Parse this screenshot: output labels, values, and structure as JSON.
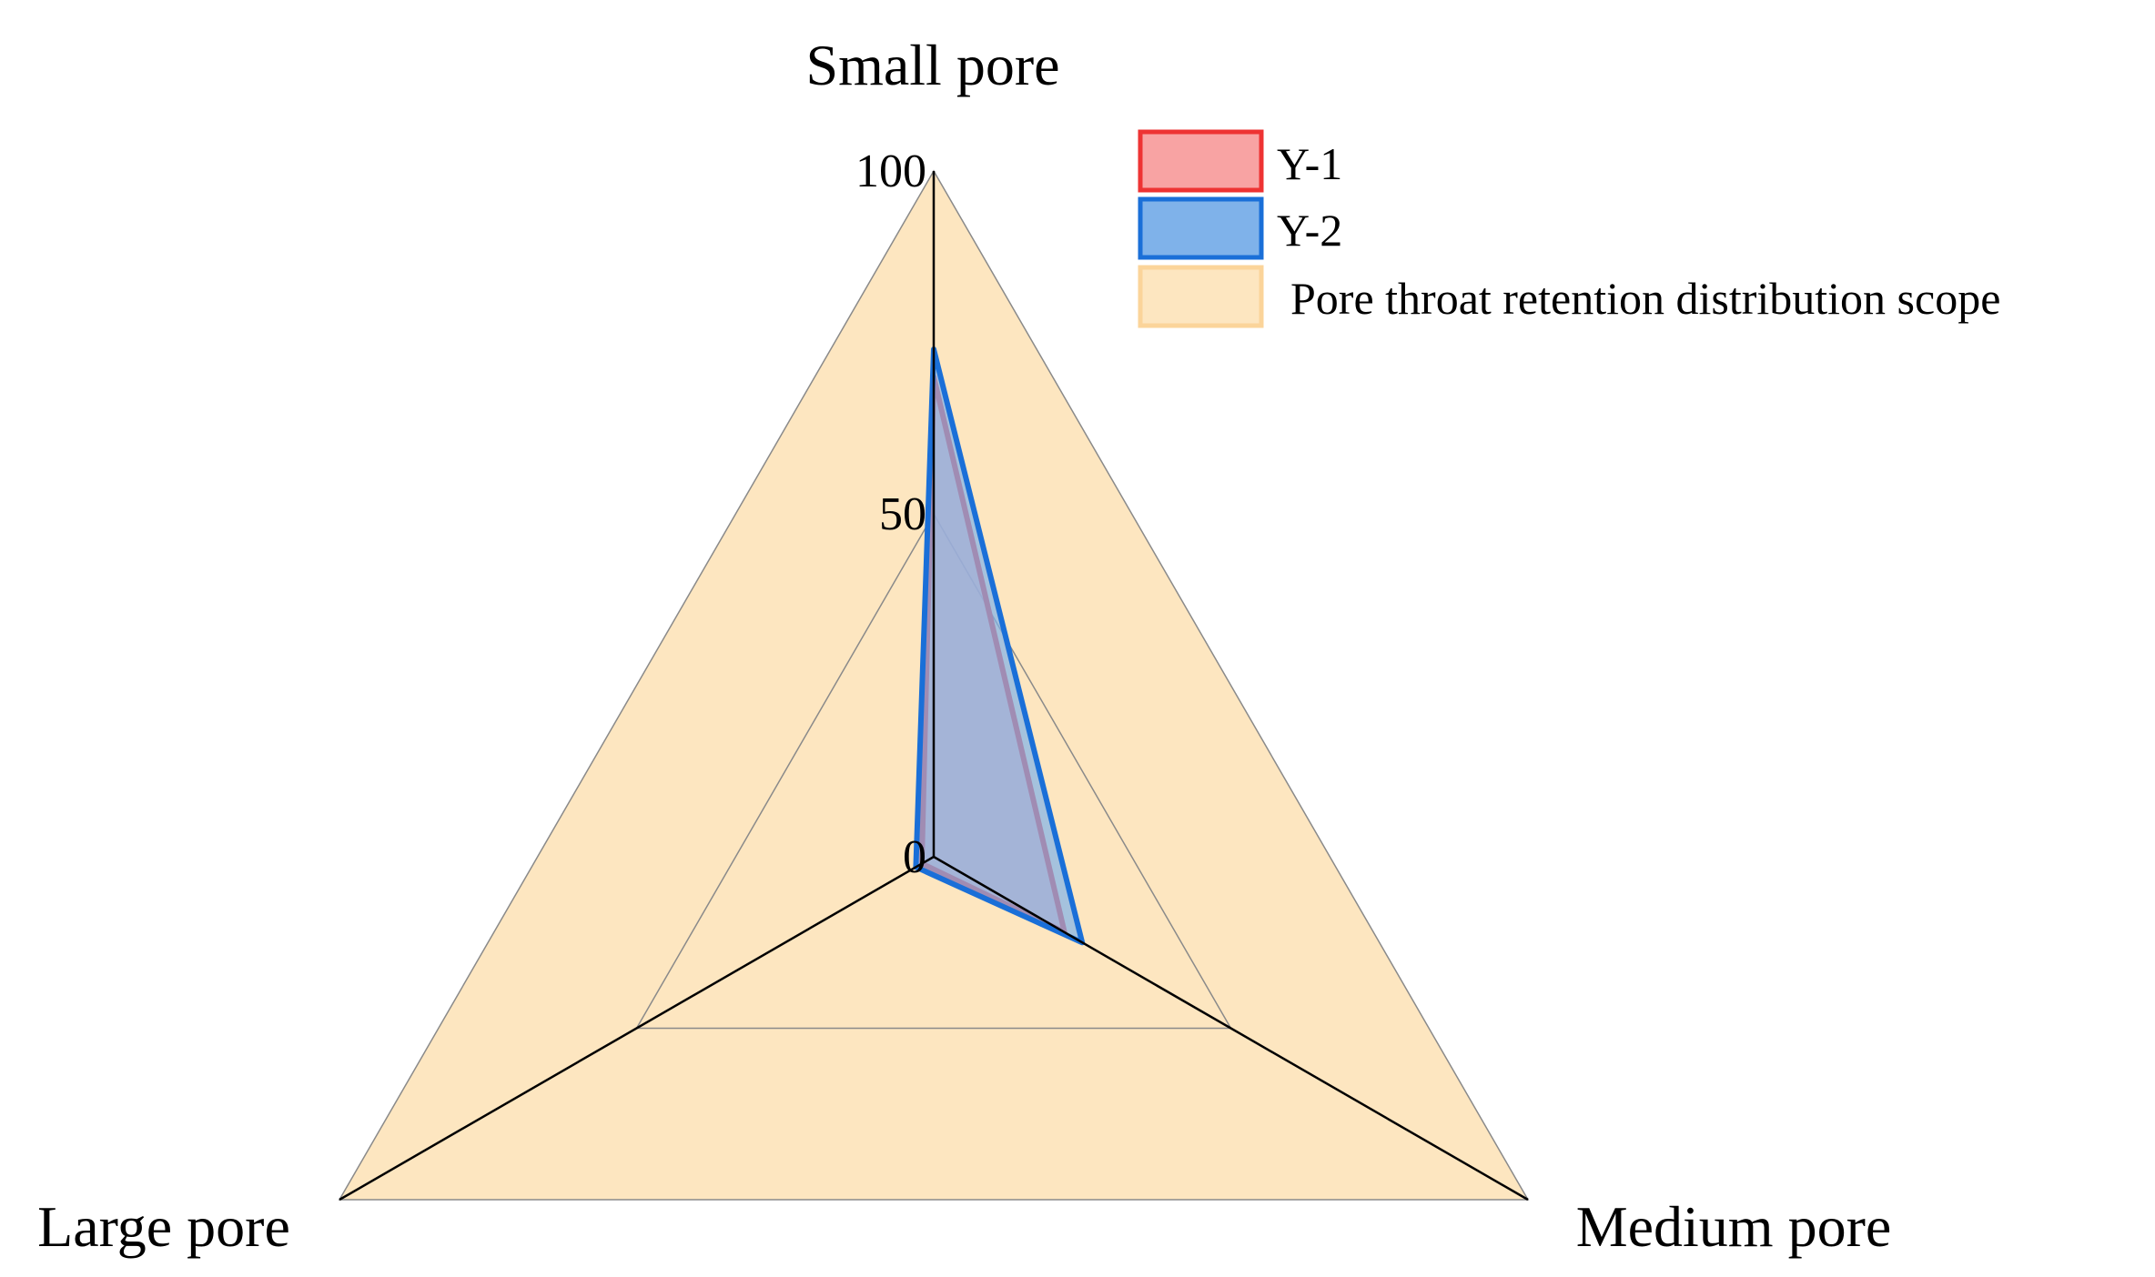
{
  "chart_data": {
    "type": "radar",
    "axes": [
      "Small pore",
      "Medium pore",
      "Large pore"
    ],
    "range": [
      0,
      100
    ],
    "ticks": [
      0,
      50,
      100
    ],
    "tick_labels": [
      "0",
      "50",
      "100"
    ],
    "grid": true,
    "legend_position": "top-right",
    "scope": {
      "name": "Pore throat retention distribution scope",
      "values": [
        100,
        100,
        100
      ],
      "fill": "#fde6c0",
      "stroke": "#fbd49a"
    },
    "series": [
      {
        "name": "Y-1",
        "values": [
          70,
          22,
          2
        ],
        "fill": "#f8a3a3",
        "stroke": "#ee3333"
      },
      {
        "name": "Y-2",
        "values": [
          74,
          25,
          3
        ],
        "fill": "#7fb2ea",
        "stroke": "#1a6fd8"
      }
    ]
  }
}
